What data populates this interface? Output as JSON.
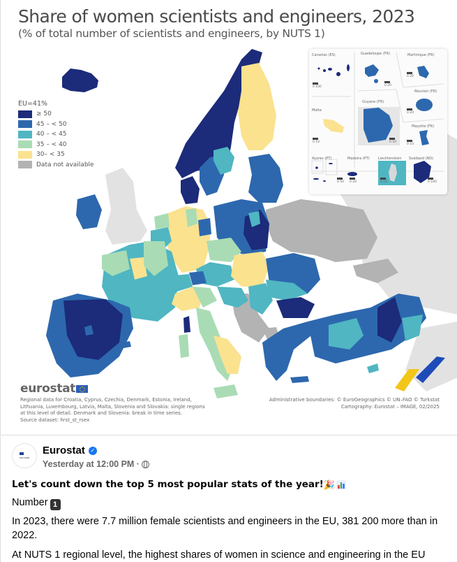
{
  "map_card": {
    "title": "Share of women scientists and engineers, 2023",
    "subtitle": "(% of total number of scientists and engineers, by NUTS 1)",
    "legend": {
      "title": "EU=41%",
      "items": [
        {
          "label": "≥ 50",
          "color": "#1c2b7a"
        },
        {
          "label": "45 – < 50",
          "color": "#2d68ae"
        },
        {
          "label": "40 – < 45",
          "color": "#4fb6c2"
        },
        {
          "label": "35 – < 40",
          "color": "#a9dcb4"
        },
        {
          "label": "30– < 35",
          "color": "#fbe28f"
        },
        {
          "label": "Data not available",
          "color": "#b3b3b3"
        }
      ]
    },
    "insets": [
      {
        "label": "Canarias (ES)",
        "scale": "0   100"
      },
      {
        "label": "Guadeloupe (FR)",
        "scale": "0   20"
      },
      {
        "label": "Martinique (FR)",
        "scale": "0   20"
      },
      {
        "label": "Réunion (FR)",
        "scale": "0   20"
      },
      {
        "label": "Malta",
        "scale": "0   10"
      },
      {
        "label": "Guyane (FR)",
        "scale": "0   50"
      },
      {
        "label": "Mayotte (FR)",
        "scale": "0   10"
      },
      {
        "label": "Açores (PT)",
        "scale": "0   50"
      },
      {
        "label": "Madeira (PT)",
        "scale": "0  20"
      },
      {
        "label": "Liechtenstein",
        "scale": "0   10"
      },
      {
        "label": "Svalbard (NO)",
        "scale": "0 100"
      }
    ],
    "logo_text": "eurostat",
    "footnote": [
      "Regional data for Croatia, Cyprus, Czechia, Denmark, Estonia, Ireland,",
      "Lithuania, Luxembourg, Latvia, Malta, Slovenia and Slovakia: single regions",
      "at this level of detail. Denmark and Slovenia: break in time series.",
      "Source dataset: hrst_st_rsex"
    ],
    "credits": [
      "Administrative boundaries: © EuroGeographics © UN–FAO © Turkstat",
      "Cartography: Eurostat – IMAGE, 02/2025"
    ],
    "colors": {
      "c50": "#1c2b7a",
      "c45": "#2d68ae",
      "c40": "#4fb6c2",
      "c35": "#a9dcb4",
      "c30": "#fbe28f",
      "na": "#b3b3b3",
      "nonEU": "#e0e0e0",
      "sea": "#ffffff"
    }
  },
  "post": {
    "avatar_text": "eurostat",
    "page_name": "Eurostat",
    "time": "Yesterday at 12:00 PM ·",
    "headline": "Let's count down the top 5 most popular stats of the year!",
    "number_label": "Number",
    "number_badge": "1",
    "paragraph1": "In 2023, there were 7.7 million female scientists and engineers in the EU, 381 200 more than in 2022.",
    "paragraph2": "At NUTS 1 regional level, the highest shares of women in science and engineering in the EU"
  }
}
